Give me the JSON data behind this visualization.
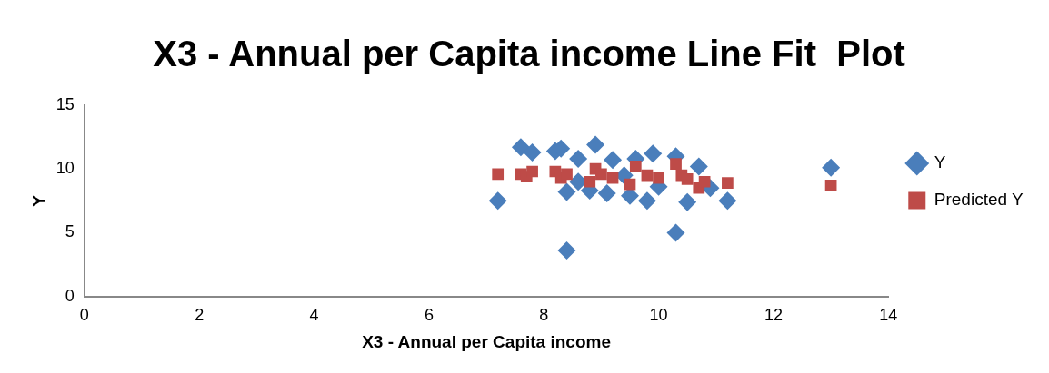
{
  "chart_data": {
    "type": "scatter",
    "title": "X3 - Annual per Capita income Line Fit  Plot",
    "xlabel": "X3 - Annual per Capita income",
    "ylabel": "Y",
    "xlim": [
      0,
      14
    ],
    "xticks": [
      0,
      2,
      4,
      6,
      8,
      10,
      12,
      14
    ],
    "ylim": [
      0,
      15
    ],
    "yticks": [
      0,
      5,
      10,
      15
    ],
    "grid": false,
    "legend": "right",
    "series": [
      {
        "name": "Y",
        "color": "#4a7ebb",
        "marker": "diamond",
        "x": [
          7.2,
          7.6,
          7.8,
          8.2,
          8.3,
          8.4,
          8.4,
          8.6,
          8.6,
          8.8,
          8.9,
          9.1,
          9.2,
          9.4,
          9.5,
          9.6,
          9.8,
          9.9,
          10.0,
          10.3,
          10.3,
          10.5,
          10.7,
          10.9,
          11.2,
          13.0
        ],
        "values": [
          7.5,
          11.7,
          11.3,
          11.4,
          11.6,
          8.2,
          3.6,
          10.8,
          9.0,
          8.3,
          11.9,
          8.1,
          10.7,
          9.5,
          7.9,
          10.8,
          7.5,
          11.2,
          8.6,
          11.0,
          5.0,
          7.4,
          10.2,
          8.5,
          7.5,
          10.1
        ]
      },
      {
        "name": "Predicted Y",
        "color": "#be4b48",
        "marker": "square",
        "x": [
          7.2,
          7.6,
          7.7,
          7.8,
          8.2,
          8.3,
          8.4,
          8.6,
          8.8,
          8.9,
          9.0,
          9.2,
          9.5,
          9.6,
          9.8,
          9.9,
          10.0,
          10.3,
          10.4,
          10.5,
          10.7,
          10.8,
          10.9,
          11.2,
          13.0
        ],
        "values": [
          9.6,
          9.6,
          9.4,
          9.8,
          9.8,
          9.3,
          9.6,
          null,
          9.0,
          10.0,
          9.6,
          9.3,
          8.8,
          10.2,
          9.5,
          null,
          9.3,
          10.4,
          9.5,
          9.2,
          8.5,
          9.0,
          null,
          8.9,
          8.7
        ]
      }
    ]
  }
}
